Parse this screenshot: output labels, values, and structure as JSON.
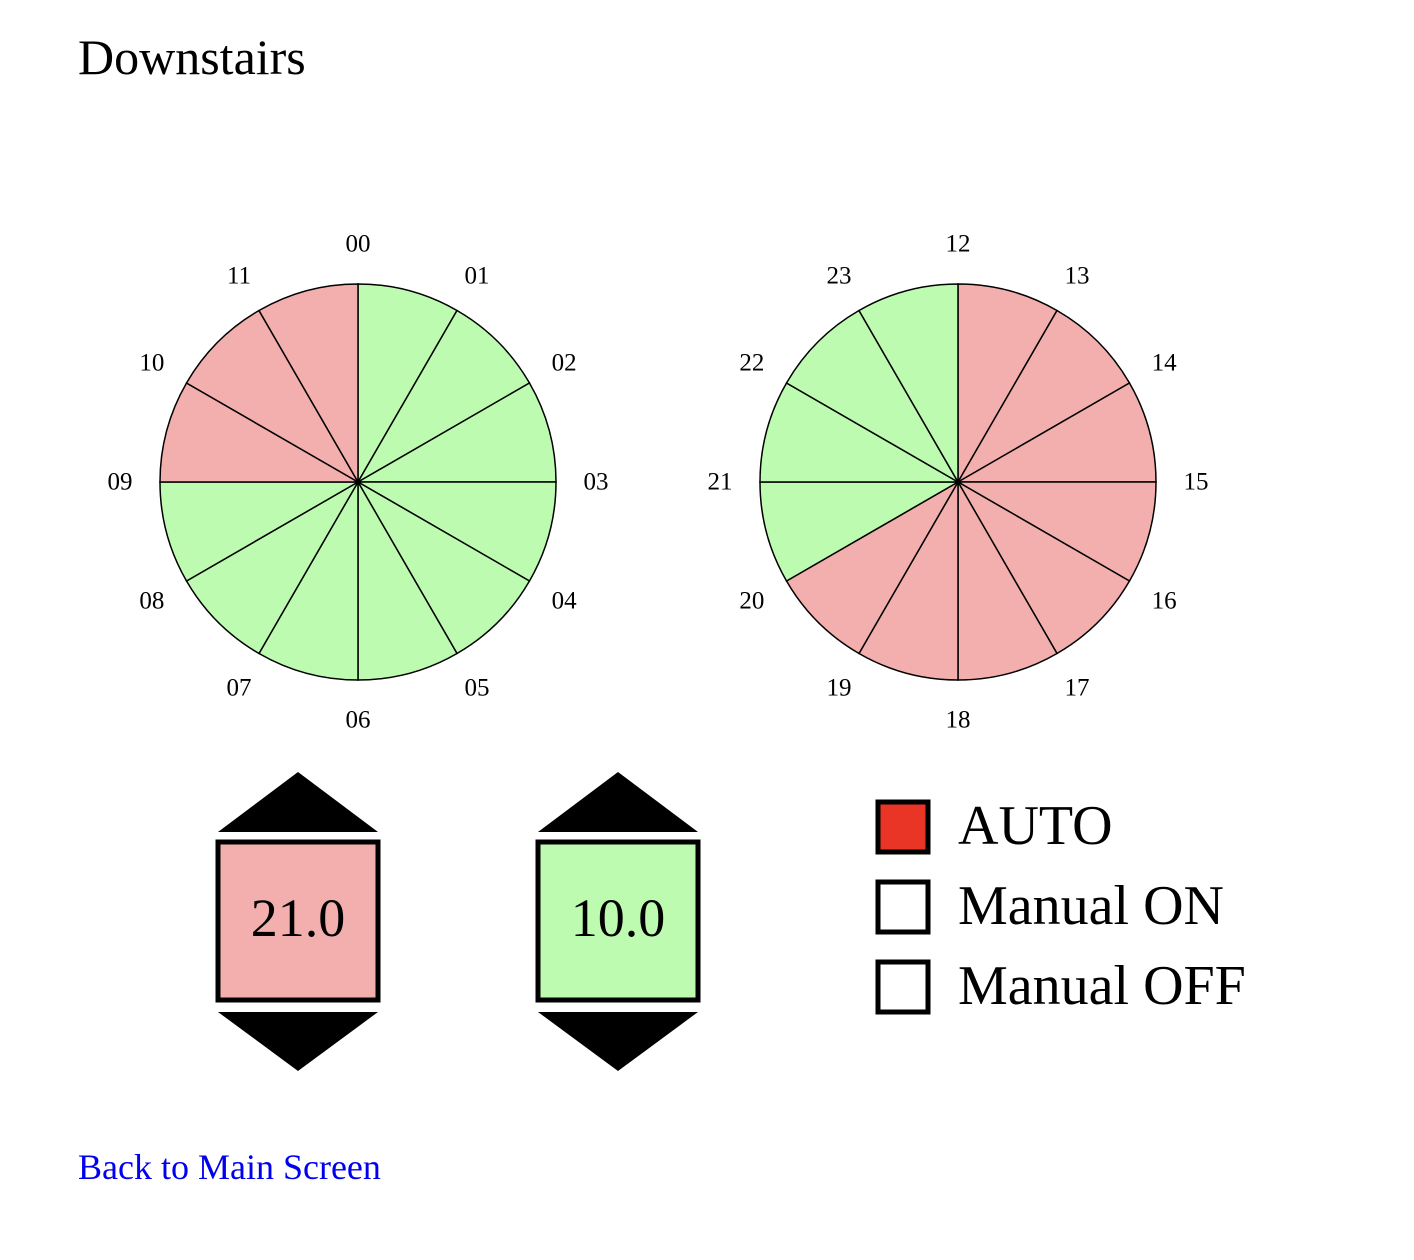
{
  "title": "Downstairs",
  "colors": {
    "on": "#bdfbb0",
    "off": "#f2afad",
    "selected": "#e83526",
    "link": "#0000ee"
  },
  "clocks": [
    {
      "name": "am",
      "hours": [
        {
          "label": "00",
          "state": "on"
        },
        {
          "label": "01",
          "state": "on"
        },
        {
          "label": "02",
          "state": "on"
        },
        {
          "label": "03",
          "state": "on"
        },
        {
          "label": "04",
          "state": "on"
        },
        {
          "label": "05",
          "state": "on"
        },
        {
          "label": "06",
          "state": "on"
        },
        {
          "label": "07",
          "state": "on"
        },
        {
          "label": "08",
          "state": "on"
        },
        {
          "label": "09",
          "state": "off"
        },
        {
          "label": "10",
          "state": "off"
        },
        {
          "label": "11",
          "state": "off"
        }
      ]
    },
    {
      "name": "pm",
      "hours": [
        {
          "label": "12",
          "state": "off"
        },
        {
          "label": "13",
          "state": "off"
        },
        {
          "label": "14",
          "state": "off"
        },
        {
          "label": "15",
          "state": "off"
        },
        {
          "label": "16",
          "state": "off"
        },
        {
          "label": "17",
          "state": "off"
        },
        {
          "label": "18",
          "state": "off"
        },
        {
          "label": "19",
          "state": "off"
        },
        {
          "label": "20",
          "state": "on"
        },
        {
          "label": "21",
          "state": "on"
        },
        {
          "label": "22",
          "state": "on"
        },
        {
          "label": "23",
          "state": "on"
        }
      ]
    }
  ],
  "setpoints": [
    {
      "name": "off",
      "value": "21.0",
      "state": "off"
    },
    {
      "name": "on",
      "value": "10.0",
      "state": "on"
    }
  ],
  "modes": [
    {
      "name": "auto",
      "label": "AUTO",
      "selected": true
    },
    {
      "name": "manual-on",
      "label": "Manual ON",
      "selected": false
    },
    {
      "name": "manual-off",
      "label": "Manual OFF",
      "selected": false
    }
  ],
  "back_link": "Back to Main Screen"
}
